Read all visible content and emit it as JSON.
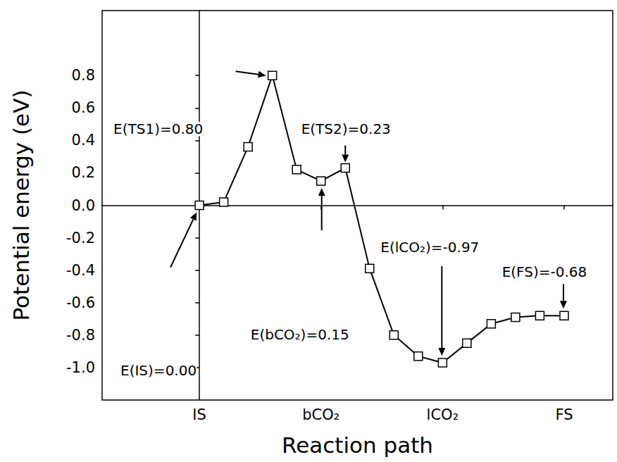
{
  "chart_data": {
    "type": "line",
    "x": [
      0,
      1,
      2,
      3,
      4,
      5,
      6,
      7,
      8,
      9,
      10,
      11,
      12,
      13,
      14,
      15
    ],
    "values": [
      0.0,
      0.02,
      0.36,
      0.8,
      0.22,
      0.15,
      0.23,
      -0.39,
      -0.8,
      -0.93,
      -0.97,
      -0.85,
      -0.73,
      -0.69,
      -0.68,
      -0.68
    ],
    "color": "#000000",
    "marker": "square",
    "x_label": "Reaction path",
    "y_label": "Potential energy (eV)",
    "xlim": [
      -4,
      17
    ],
    "xticks": [
      {
        "value": 0,
        "label": "IS"
      },
      {
        "value": 5,
        "label": "bCO₂"
      },
      {
        "value": 10,
        "label": "lCO₂"
      },
      {
        "value": 15,
        "label": "FS"
      }
    ],
    "ylim": [
      -1.2,
      1.2
    ],
    "yticks": [
      {
        "value": -1.0,
        "label": "-1.0"
      },
      -0.8,
      -0.6,
      -0.4,
      -0.2,
      {
        "value": 0,
        "label": "0.0"
      },
      0.2,
      0.4,
      0.6,
      0.8
    ],
    "grid": false,
    "annotations": [
      {
        "text": "E(IS)=0.00",
        "x": 0,
        "y": 0.0
      },
      {
        "text": "E(TS1)=0.80",
        "x": 3,
        "y": 0.8
      },
      {
        "text": "E(bCO₂)=0.15",
        "x": 5,
        "y": 0.15
      },
      {
        "text": "E(TS2)=0.23",
        "x": 6,
        "y": 0.23
      },
      {
        "text": "E(lCO₂)=-0.97",
        "x": 10,
        "y": -0.97
      },
      {
        "text": "E(FS)=-0.68",
        "x": 15,
        "y": -0.68
      }
    ]
  }
}
